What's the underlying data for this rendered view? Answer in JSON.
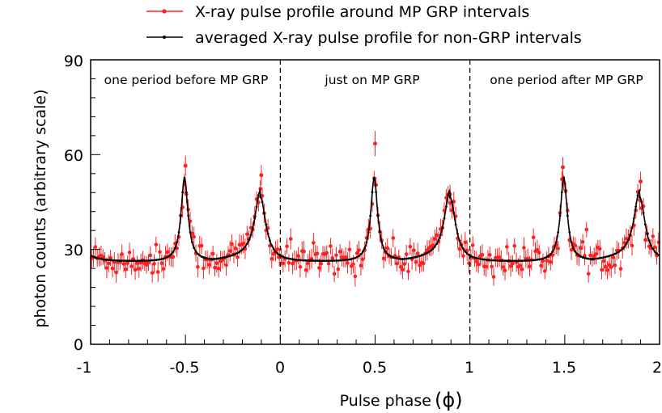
{
  "chart_data": {
    "type": "line",
    "xlabel": "Pulse phase",
    "xlabel_symbol": "(ϕ)",
    "ylabel": "photon counts (arbitrary scale)",
    "xlim": [
      -1,
      2
    ],
    "ylim": [
      0,
      90
    ],
    "x_ticks": [
      -1,
      -0.5,
      0,
      0.5,
      1,
      1.5,
      2
    ],
    "x_tick_labels": [
      "-1",
      "-0.5",
      "0",
      "0.5",
      "1",
      "1.5",
      "2"
    ],
    "y_ticks": [
      0,
      30,
      60,
      90
    ],
    "y_tick_labels": [
      "0",
      "30",
      "60",
      "90"
    ],
    "grid": false,
    "legend_position": "top-center",
    "legend": [
      "X-ray pulse profile around MP GRP intervals",
      "averaged X-ray pulse profile for non-GRP intervals"
    ],
    "series": [
      {
        "name": "X-ray pulse profile around MP GRP intervals",
        "color": "#ff2020",
        "style": "points-with-error-bars",
        "error_typical": 2.8,
        "outlier_points": [
          [
            -0.5,
            56.5,
            3.2
          ],
          [
            -0.1,
            53.5,
            3.2
          ],
          [
            0.5,
            63.5,
            4.0
          ],
          [
            0.895,
            47.5,
            3.0
          ],
          [
            1.49,
            56.0,
            3.2
          ],
          [
            1.9,
            51.5,
            3.1
          ]
        ]
      },
      {
        "name": "averaged X-ray pulse profile for non-GRP intervals",
        "color": "#000000",
        "style": "line-with-markers",
        "baseline": 26,
        "peaks": [
          {
            "phase": 0.495,
            "height": 52.5
          },
          {
            "phase": 0.895,
            "height": 46.5
          }
        ],
        "period": 1
      }
    ],
    "dividers": [
      0,
      1
    ],
    "region_labels": [
      {
        "text": "one period before MP GRP",
        "x_center": -0.5
      },
      {
        "text": "just on MP GRP",
        "x_center": 0.5
      },
      {
        "text": "one period after MP GRP",
        "x_center": 1.5
      }
    ]
  }
}
